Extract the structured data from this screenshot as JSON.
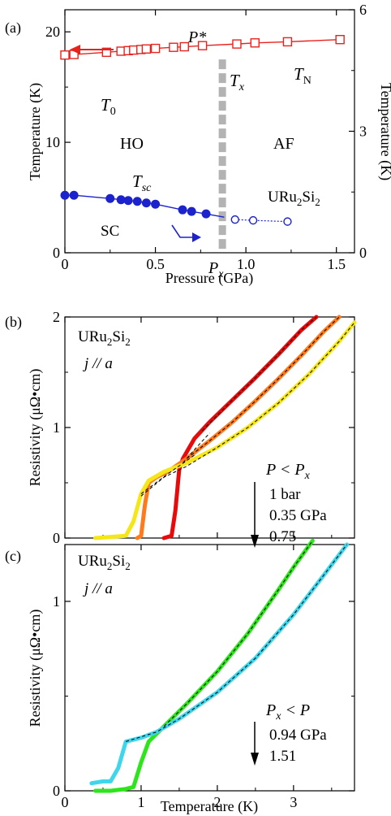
{
  "chart_data": [
    {
      "type": "scatter",
      "panel_label": "(a)",
      "xlabel": "Pressure (GPa)",
      "ylabel": "Temperature (K)",
      "ylabel_right": "Temperature (K)",
      "xlim": [
        0,
        1.6
      ],
      "ylim": [
        0,
        22
      ],
      "ylim_right": [
        0,
        6
      ],
      "xticks": [
        0,
        0.5,
        1,
        1.5
      ],
      "xtick_labels": [
        "0",
        "0.5",
        "1.0",
        "1.5"
      ],
      "yticks": [
        0,
        10,
        20
      ],
      "yticks_right": [
        0,
        3,
        6
      ],
      "series": [
        {
          "name": "T_N / T_0",
          "marker": "open-square",
          "color": "#e8231e",
          "x": [
            0.0,
            0.05,
            0.23,
            0.31,
            0.35,
            0.38,
            0.42,
            0.45,
            0.5,
            0.6,
            0.66,
            0.76,
            0.95,
            1.05,
            1.23,
            1.52
          ],
          "y": [
            17.9,
            17.95,
            18.15,
            18.25,
            18.3,
            18.35,
            18.4,
            18.45,
            18.5,
            18.6,
            18.65,
            18.75,
            18.9,
            19.0,
            19.1,
            19.3
          ]
        },
        {
          "name": "T_sc (SC, right axis)",
          "marker": "filled-circle",
          "color": "#1c22cc",
          "x": [
            0.0,
            0.05,
            0.25,
            0.31,
            0.35,
            0.4,
            0.45,
            0.5,
            0.65,
            0.7,
            0.78
          ],
          "y": [
            1.42,
            1.42,
            1.34,
            1.31,
            1.29,
            1.27,
            1.23,
            1.2,
            1.06,
            1.02,
            0.96
          ]
        },
        {
          "name": "URu2Si2 (AF, right axis)",
          "marker": "open-circle",
          "color": "#1c22cc",
          "x": [
            0.94,
            1.04,
            1.23
          ],
          "y": [
            0.82,
            0.8,
            0.77
          ]
        }
      ],
      "px_band": {
        "x": 0.87,
        "y_top": 17.5
      },
      "labels": {
        "p_star": "P*",
        "t0": "T0",
        "tx": "Tx",
        "tn": "TN",
        "ho": "HO",
        "af": "AF",
        "tsc": "Tsc",
        "sc": "SC",
        "compound": "URu2Si2",
        "px": "Px"
      }
    },
    {
      "type": "line",
      "panel_label": "(b)",
      "compound": "URu2Si2",
      "current_dir": "j // a",
      "ylabel": "Resistivity (μΩ•cm)",
      "xlim": [
        0,
        3.8
      ],
      "ylim": [
        0,
        2
      ],
      "yticks": [
        0,
        1,
        2
      ],
      "legend_condition": "P < Px",
      "series": [
        {
          "name": "1 bar",
          "color": "#e80b0b",
          "x": [
            1.3,
            1.4,
            1.45,
            1.5,
            1.55,
            1.6,
            1.7,
            1.9,
            2.2,
            2.5,
            2.8,
            3.1,
            3.3
          ],
          "y": [
            0.0,
            0.02,
            0.25,
            0.62,
            0.72,
            0.78,
            0.9,
            1.05,
            1.25,
            1.45,
            1.66,
            1.88,
            2.0
          ]
        },
        {
          "name": "0.35 GPa",
          "color": "#ff7a1a",
          "x": [
            0.95,
            1.0,
            1.05,
            1.1,
            1.2,
            1.35,
            1.6,
            1.9,
            2.2,
            2.5,
            2.8,
            3.1,
            3.4,
            3.6
          ],
          "y": [
            0.0,
            0.02,
            0.3,
            0.5,
            0.55,
            0.6,
            0.72,
            0.88,
            1.05,
            1.24,
            1.44,
            1.65,
            1.87,
            2.0
          ]
        },
        {
          "name": "0.75",
          "color": "#f5e618",
          "x": [
            0.4,
            0.6,
            0.8,
            0.9,
            1.0,
            1.1,
            1.3,
            1.6,
            2.0,
            2.4,
            2.8,
            3.2,
            3.6,
            3.8
          ],
          "y": [
            0.0,
            0.01,
            0.02,
            0.15,
            0.4,
            0.52,
            0.6,
            0.68,
            0.82,
            1.0,
            1.22,
            1.48,
            1.78,
            1.95
          ]
        }
      ],
      "legend_entries": [
        "1 bar",
        "0.35 GPa",
        "0.75"
      ]
    },
    {
      "type": "line",
      "panel_label": "(c)",
      "compound": "URu2Si2",
      "current_dir": "j // a",
      "xlabel": "Temperature (K)",
      "ylabel": "Resistivity (μΩ•cm)",
      "xlim": [
        0,
        3.8
      ],
      "ylim": [
        0,
        1.3
      ],
      "xticks": [
        0,
        1,
        2,
        3
      ],
      "yticks": [
        0,
        1
      ],
      "legend_condition": "Px < P",
      "series": [
        {
          "name": "0.94 GPa",
          "color": "#2ee51c",
          "x": [
            0.4,
            0.6,
            0.8,
            0.9,
            1.0,
            1.1,
            1.2,
            1.3,
            1.6,
            2.0,
            2.4,
            2.8,
            3.0,
            3.25
          ],
          "y": [
            0.0,
            0.0,
            0.01,
            0.02,
            0.15,
            0.26,
            0.3,
            0.34,
            0.46,
            0.63,
            0.83,
            1.06,
            1.18,
            1.32
          ]
        },
        {
          "name": "1.51",
          "color": "#3fd6ec",
          "x": [
            0.35,
            0.5,
            0.6,
            0.7,
            0.8,
            1.0,
            1.2,
            1.5,
            2.0,
            2.5,
            3.0,
            3.4,
            3.7
          ],
          "y": [
            0.04,
            0.05,
            0.05,
            0.12,
            0.26,
            0.28,
            0.31,
            0.38,
            0.52,
            0.7,
            0.93,
            1.14,
            1.3
          ]
        }
      ],
      "legend_entries": [
        "0.94 GPa",
        "1.51"
      ]
    }
  ]
}
